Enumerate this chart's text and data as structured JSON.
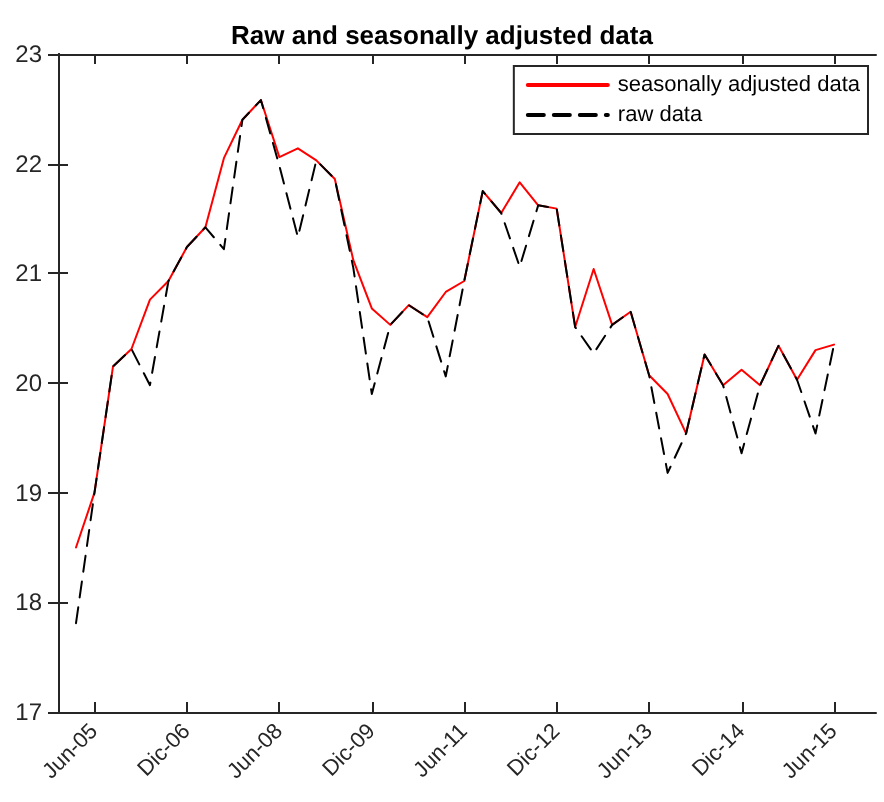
{
  "chart_data": {
    "type": "line",
    "title": "Raw and seasonally adjusted data",
    "categories": [
      null,
      "Jun-05",
      null,
      null,
      null,
      null,
      "Dic-06",
      null,
      null,
      null,
      null,
      "Jun-08",
      null,
      null,
      null,
      null,
      "Dic-09",
      null,
      null,
      null,
      null,
      "Jun-11",
      null,
      null,
      null,
      null,
      "Dic-12",
      null,
      null,
      null,
      null,
      "Jun-13",
      null,
      null,
      null,
      null,
      "Dic-14",
      null,
      null,
      null,
      null,
      "Jun-15"
    ],
    "series": [
      {
        "name": "seasonally adjusted data",
        "color": "#ff0000",
        "line_style": "solid",
        "values": [
          18.5,
          19.0,
          20.15,
          20.31,
          20.76,
          20.93,
          21.24,
          21.42,
          22.05,
          22.4,
          22.58,
          22.06,
          22.14,
          22.03,
          21.86,
          21.12,
          20.68,
          20.53,
          20.71,
          20.6,
          20.83,
          20.93,
          21.75,
          21.55,
          21.83,
          21.62,
          21.59,
          20.51,
          21.04,
          20.53,
          20.65,
          20.07,
          19.9,
          19.54,
          20.26,
          19.98,
          20.12,
          19.98,
          20.34,
          20.03,
          20.3,
          20.35
        ]
      },
      {
        "name": "raw data",
        "color": "#000000",
        "line_style": "dashed",
        "values": [
          17.81,
          19.0,
          20.15,
          20.31,
          19.98,
          20.93,
          21.24,
          21.42,
          21.22,
          22.4,
          22.58,
          21.98,
          21.33,
          22.03,
          21.86,
          21.05,
          19.9,
          20.53,
          20.71,
          20.6,
          20.06,
          20.93,
          21.75,
          21.55,
          21.06,
          21.62,
          21.59,
          20.51,
          20.27,
          20.53,
          20.65,
          20.07,
          19.18,
          19.54,
          20.26,
          19.98,
          19.36,
          19.98,
          20.34,
          20.03,
          19.54,
          20.35
        ]
      }
    ],
    "ylim": [
      17,
      23
    ],
    "yticks": [
      17,
      18,
      19,
      20,
      21,
      22,
      23
    ],
    "grid": false,
    "legend": "top right",
    "marker": "none"
  }
}
